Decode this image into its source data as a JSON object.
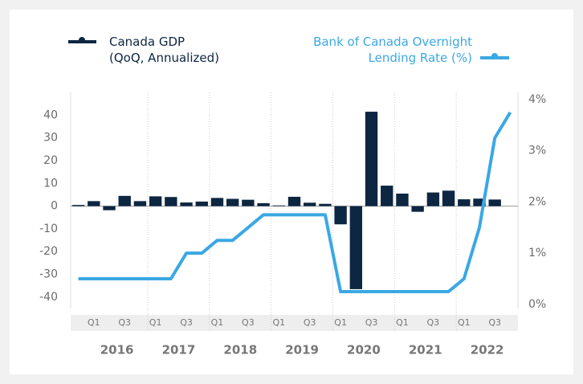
{
  "chart_data": {
    "type": "bar_line",
    "categories": [
      null,
      "Q1",
      null,
      "Q3",
      null,
      "Q1",
      null,
      "Q3",
      null,
      "Q1",
      null,
      "Q3",
      null,
      "Q1",
      null,
      "Q3",
      null,
      "Q1",
      null,
      "Q3",
      null,
      "Q1",
      null,
      "Q3",
      null,
      "Q1",
      null,
      "Q3",
      null
    ],
    "x_groups": [
      "2016",
      "2017",
      "2018",
      "2019",
      "2020",
      "2021",
      "2022"
    ],
    "series": [
      {
        "name": "Canada GDP\n(QoQ, Annualized)",
        "type": "bar",
        "color": "#0d2641",
        "values": [
          0.5,
          2.2,
          -1.8,
          4.5,
          2.2,
          4.3,
          4.0,
          1.6,
          2.0,
          3.6,
          3.2,
          2.8,
          1.3,
          0.3,
          4.1,
          1.5,
          1.0,
          -8,
          -36.5,
          41.5,
          9,
          5.5,
          -2.5,
          6,
          6.8,
          3,
          3.3,
          2.9,
          null
        ]
      },
      {
        "name": "Bank of Canada Overnight\nLending Rate (%)",
        "type": "line",
        "axis": "y2",
        "color": "#3aa8e4",
        "values": [
          0.5,
          0.5,
          0.5,
          0.5,
          0.5,
          0.5,
          0.5,
          1.0,
          1.0,
          1.25,
          1.25,
          1.5,
          1.75,
          1.75,
          1.75,
          1.75,
          1.75,
          0.25,
          0.25,
          0.25,
          0.25,
          0.25,
          0.25,
          0.25,
          0.25,
          0.5,
          1.5,
          3.25,
          3.75
        ]
      }
    ],
    "ylim": [
      -45,
      50
    ],
    "yticks": [
      -40,
      -30,
      -20,
      -10,
      0,
      10,
      20,
      30,
      40
    ],
    "y2lim": [
      -0.08,
      4.14
    ],
    "y2ticks": [
      {
        "value": 0,
        "label": "0%"
      },
      {
        "value": 1,
        "label": "1%"
      },
      {
        "value": 2,
        "label": "2%"
      },
      {
        "value": 3,
        "label": "3%"
      },
      {
        "value": 4,
        "label": "4%"
      }
    ],
    "grid": false
  }
}
